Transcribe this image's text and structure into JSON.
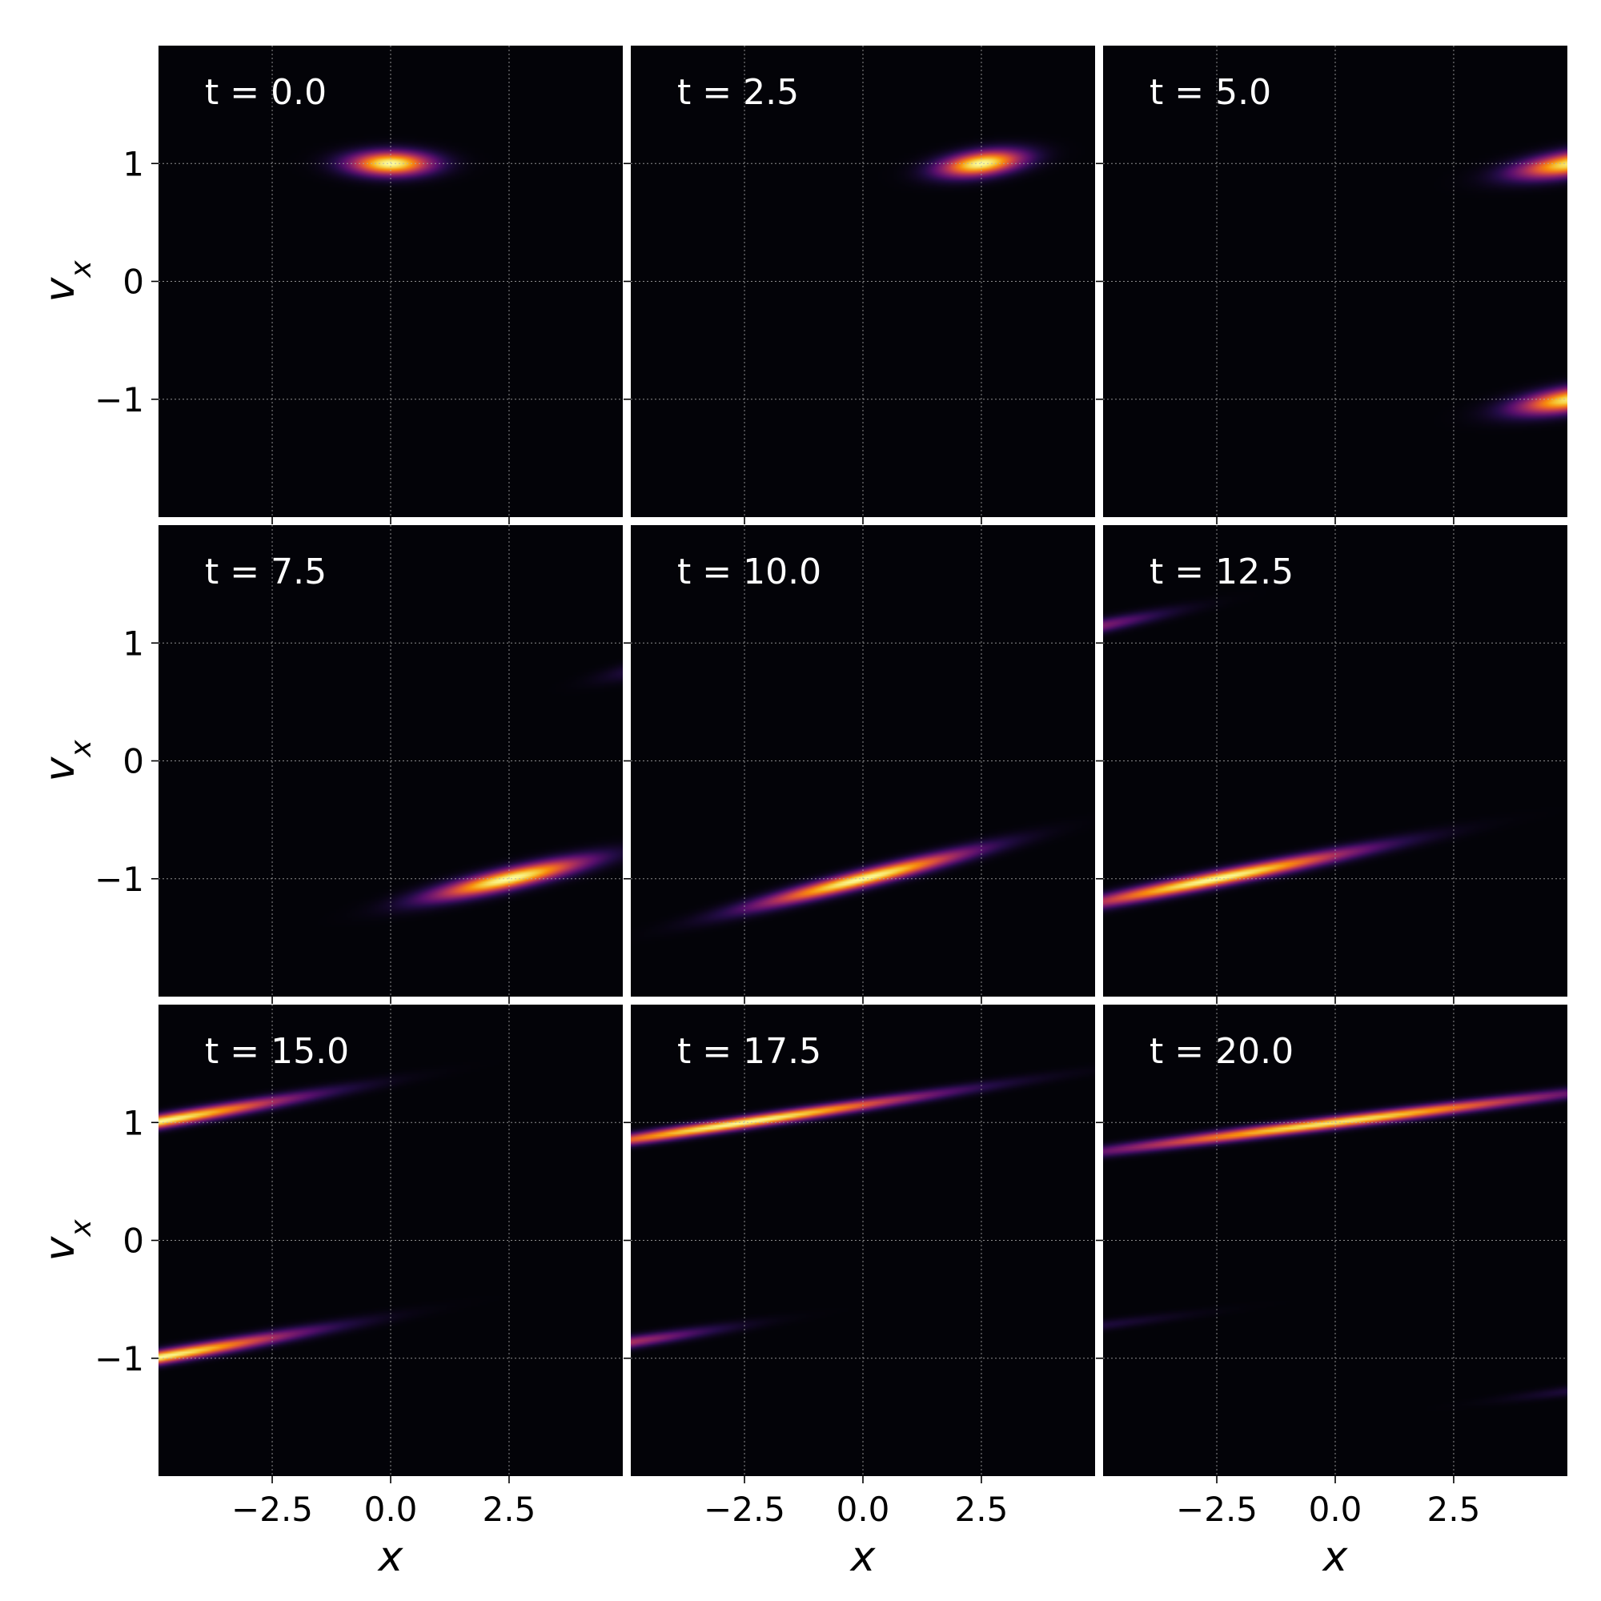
{
  "chart_data": {
    "type": "heatmap",
    "colormap": "inferno",
    "layout": "3x3 grid of panels with shared axes",
    "xlabel": "x",
    "ylabel": "v",
    "ylabel_subscript": "x",
    "xlim": [
      -4.9,
      4.9
    ],
    "ylim": [
      -2.0,
      2.0
    ],
    "xticks": [
      -2.5,
      0.0,
      2.5
    ],
    "xtick_labels": [
      "−2.5",
      "0.0",
      "2.5"
    ],
    "yticks": [
      -1,
      0,
      1
    ],
    "ytick_labels": [
      "−1",
      "0",
      "1"
    ],
    "grid": true,
    "annotation_position": "top-left",
    "panels": [
      {
        "label": "t = 0.0",
        "blobs": [
          {
            "x": 0.0,
            "v": 1.0,
            "slope": 0.0,
            "sx": 0.6,
            "sv": 0.07,
            "amp": 1.0
          }
        ]
      },
      {
        "label": "t = 2.5",
        "blobs": [
          {
            "x": 2.5,
            "v": 1.0,
            "slope": 0.05,
            "sx": 0.6,
            "sv": 0.07,
            "amp": 1.0
          }
        ]
      },
      {
        "label": "t = 5.0",
        "blobs": [
          {
            "x": 5.0,
            "v": 1.0,
            "slope": 0.06,
            "sx": 0.8,
            "sv": 0.07,
            "amp": 0.95
          },
          {
            "x": 5.0,
            "v": -1.0,
            "slope": 0.06,
            "sx": 0.8,
            "sv": 0.07,
            "amp": 0.95
          }
        ]
      },
      {
        "label": "t = 7.5",
        "blobs": [
          {
            "x": 2.5,
            "v": -1.0,
            "slope": 0.09,
            "sx": 1.1,
            "sv": 0.06,
            "amp": 1.0
          },
          {
            "x": 5.5,
            "v": 0.8,
            "slope": 0.09,
            "sx": 0.7,
            "sv": 0.05,
            "amp": 0.15
          }
        ]
      },
      {
        "label": "t = 10.0",
        "blobs": [
          {
            "x": 0.0,
            "v": -1.0,
            "slope": 0.1,
            "sx": 1.5,
            "sv": 0.05,
            "amp": 1.0
          }
        ]
      },
      {
        "label": "t = 12.5",
        "blobs": [
          {
            "x": -2.5,
            "v": -1.0,
            "slope": 0.08,
            "sx": 2.0,
            "sv": 0.045,
            "amp": 1.0
          },
          {
            "x": -5.5,
            "v": 1.1,
            "slope": 0.08,
            "sx": 1.2,
            "sv": 0.04,
            "amp": 0.4
          }
        ]
      },
      {
        "label": "t = 15.0",
        "blobs": [
          {
            "x": -5.0,
            "v": 1.0,
            "slope": 0.07,
            "sx": 2.0,
            "sv": 0.04,
            "amp": 1.0
          },
          {
            "x": -5.0,
            "v": -1.0,
            "slope": 0.07,
            "sx": 2.0,
            "sv": 0.04,
            "amp": 1.0
          }
        ]
      },
      {
        "label": "t = 17.5",
        "blobs": [
          {
            "x": -2.5,
            "v": 1.0,
            "slope": 0.06,
            "sx": 2.6,
            "sv": 0.035,
            "amp": 1.0
          },
          {
            "x": -5.5,
            "v": -0.9,
            "slope": 0.06,
            "sx": 1.5,
            "sv": 0.035,
            "amp": 0.5
          }
        ]
      },
      {
        "label": "t = 20.0",
        "blobs": [
          {
            "x": 0.0,
            "v": 1.0,
            "slope": 0.05,
            "sx": 3.2,
            "sv": 0.035,
            "amp": 0.95
          },
          {
            "x": -5.5,
            "v": -0.75,
            "slope": 0.05,
            "sx": 1.5,
            "sv": 0.03,
            "amp": 0.12
          },
          {
            "x": 5.5,
            "v": -1.25,
            "slope": 0.05,
            "sx": 1.2,
            "sv": 0.03,
            "amp": 0.12
          }
        ]
      }
    ]
  }
}
